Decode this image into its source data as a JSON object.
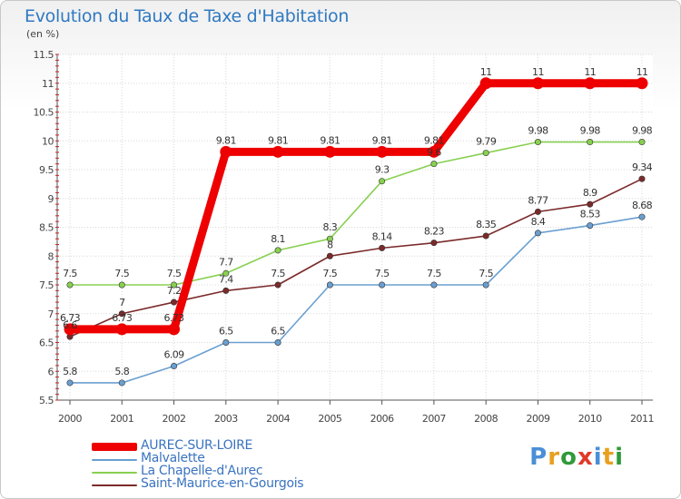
{
  "title": "Evolution du Taux de Taxe d'Habitation",
  "subtitle": "(en %)",
  "logo": {
    "text": "Proxiti",
    "colors": [
      "#4a8fd8",
      "#e8a020",
      "#2f9a3a",
      "#e03a2a",
      "#4a8fd8",
      "#e8a020",
      "#2f9a3a"
    ]
  },
  "chart_data": {
    "type": "line",
    "categories": [
      "2000",
      "2001",
      "2002",
      "2003",
      "2004",
      "2005",
      "2006",
      "2007",
      "2008",
      "2009",
      "2010",
      "2011"
    ],
    "ylim": [
      5.5,
      11.5
    ],
    "yticks": [
      "5.5",
      "6",
      "6.5",
      "7",
      "7.5",
      "8",
      "8.5",
      "9",
      "9.5",
      "10",
      "10.5",
      "11",
      "11.5"
    ],
    "grid": true,
    "legend_position": "bottom-left",
    "series": [
      {
        "name": "AUREC-SUR-LOIRE",
        "color": "#ee0000",
        "thick": true,
        "values": [
          6.73,
          6.73,
          6.73,
          9.81,
          9.81,
          9.81,
          9.81,
          9.81,
          11,
          11,
          11,
          11
        ],
        "labels": [
          "6.73",
          "6.73",
          "6.73",
          "9.81",
          "9.81",
          "9.81",
          "9.81",
          "9.81",
          "11",
          "11",
          "11",
          "11"
        ]
      },
      {
        "name": "Malvalette",
        "color": "#6a9fd0",
        "thick": false,
        "values": [
          5.8,
          5.8,
          6.09,
          6.5,
          6.5,
          7.5,
          7.5,
          7.5,
          7.5,
          8.4,
          8.53,
          8.68
        ],
        "labels": [
          "5.8",
          "5.8",
          "6.09",
          "6.5",
          "6.5",
          "7.5",
          "7.5",
          "7.5",
          "7.5",
          "8.4",
          "8.53",
          "8.68"
        ]
      },
      {
        "name": "La Chapelle-d'Aurec",
        "color": "#88d050",
        "thick": false,
        "values": [
          7.5,
          7.5,
          7.5,
          7.7,
          8.1,
          8.3,
          9.3,
          9.6,
          9.79,
          9.98,
          9.98,
          9.98
        ],
        "labels": [
          "7.5",
          "7.5",
          "7.5",
          "7.7",
          "8.1",
          "8.3",
          "9.3",
          "9.6",
          "9.79",
          "9.98",
          "9.98",
          "9.98"
        ]
      },
      {
        "name": "Saint-Maurice-en-Gourgois",
        "color": "#7a2a2a",
        "thick": false,
        "values": [
          6.6,
          7,
          7.2,
          7.4,
          7.5,
          8,
          8.14,
          8.23,
          8.35,
          8.77,
          8.9,
          9.34
        ],
        "labels": [
          "6.6",
          "7",
          "7.2",
          "7.4",
          "7.5",
          "8",
          "8.14",
          "8.23",
          "8.35",
          "8.77",
          "8.9",
          "9.34"
        ]
      }
    ]
  }
}
